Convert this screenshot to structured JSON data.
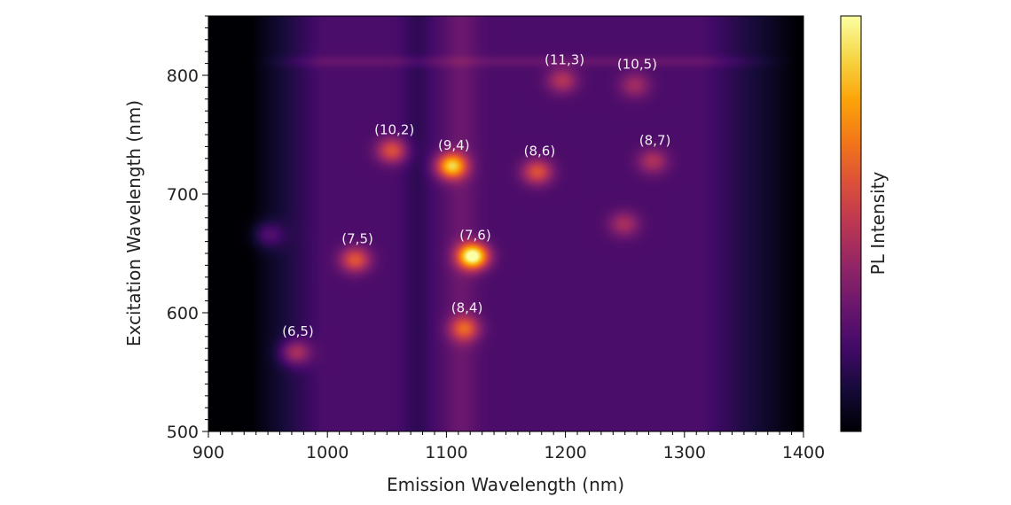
{
  "chart_data": {
    "type": "heatmap",
    "xlabel": "Emission Wavelength (nm)",
    "ylabel": "Excitation Wavelength (nm)",
    "colorbar_label": "PL Intensity",
    "colormap": "inferno",
    "xlim": [
      900,
      1400
    ],
    "ylim": [
      500,
      850
    ],
    "xticks": [
      900,
      1000,
      1100,
      1200,
      1300,
      1400
    ],
    "yticks": [
      500,
      600,
      700,
      800
    ],
    "grid": false,
    "peaks": [
      {
        "label": "(6,5)",
        "emission": 973,
        "excitation": 567,
        "intensity": 0.38
      },
      {
        "label": "(7,5)",
        "emission": 1023,
        "excitation": 645,
        "intensity": 0.48
      },
      {
        "label": "(7,6)",
        "emission": 1122,
        "excitation": 648,
        "intensity": 1.0
      },
      {
        "label": "(8,4)",
        "emission": 1115,
        "excitation": 587,
        "intensity": 0.46
      },
      {
        "label": "(10,2)",
        "emission": 1054,
        "excitation": 737,
        "intensity": 0.46
      },
      {
        "label": "(9,4)",
        "emission": 1104,
        "excitation": 724,
        "intensity": 0.78
      },
      {
        "label": "(8,6)",
        "emission": 1176,
        "excitation": 719,
        "intensity": 0.46
      },
      {
        "label": "(8,7)",
        "emission": 1273,
        "excitation": 728,
        "intensity": 0.3
      },
      {
        "label": "(11,3)",
        "emission": 1197,
        "excitation": 796,
        "intensity": 0.32
      },
      {
        "label": "(10,5)",
        "emission": 1258,
        "excitation": 792,
        "intensity": 0.26
      },
      {
        "label": "",
        "emission": 950,
        "excitation": 666,
        "intensity": 0.22
      },
      {
        "label": "",
        "emission": 1249,
        "excitation": 675,
        "intensity": 0.28
      }
    ]
  }
}
